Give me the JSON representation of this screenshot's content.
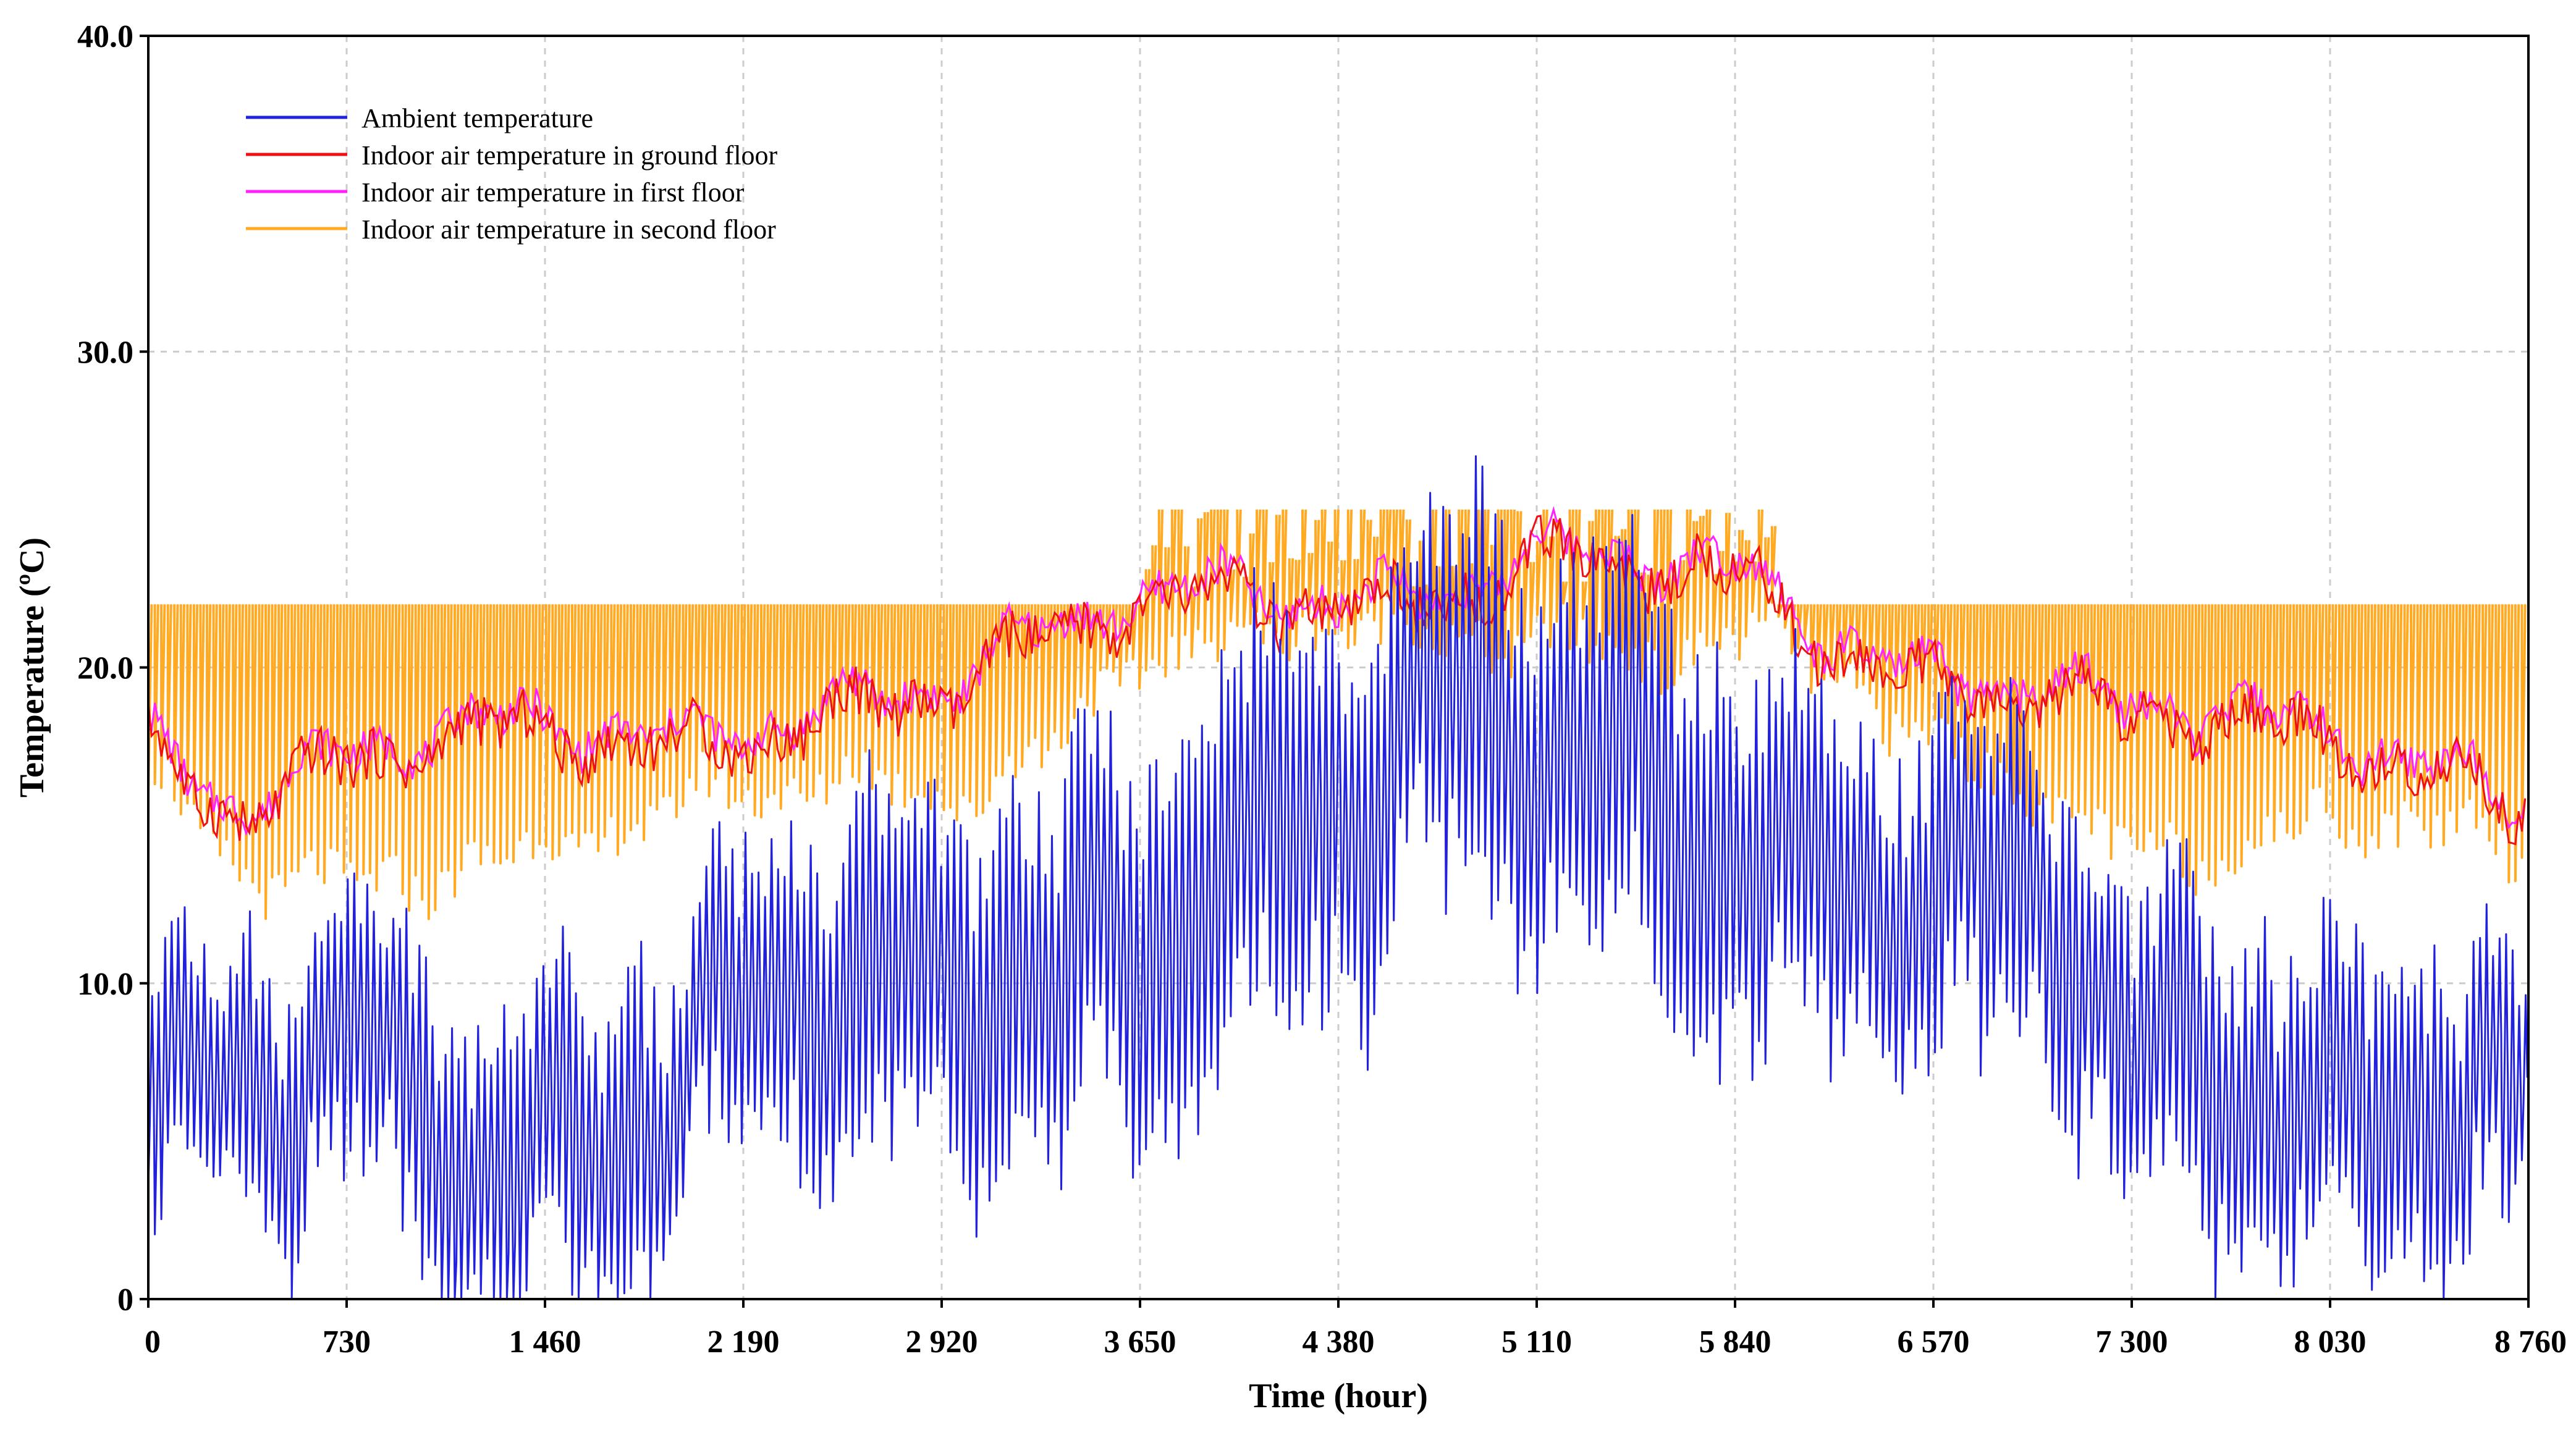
{
  "chart_data": {
    "type": "line",
    "title": "",
    "xlabel": "Time (hour)",
    "ylabel": "Temperature (ºC)",
    "xlim": [
      0,
      8760
    ],
    "ylim": [
      0,
      40
    ],
    "xticks": [
      0,
      730,
      1460,
      2190,
      2920,
      3650,
      4380,
      5110,
      5840,
      6570,
      7300,
      8030,
      8760
    ],
    "xtick_labels": [
      "0",
      "730",
      "1 460",
      "2 190",
      "2 920",
      "3 650",
      "4 380",
      "5 110",
      "5 840",
      "6 570",
      "7 300",
      "8 030",
      "8 760"
    ],
    "yticks": [
      0,
      10,
      20,
      30,
      40
    ],
    "ytick_labels": [
      "0",
      "10.0",
      "20.0",
      "30.0",
      "40.0"
    ],
    "grid": true,
    "legend_position": "top-left",
    "x": [
      0,
      365,
      730,
      1095,
      1460,
      1825,
      2190,
      2555,
      2920,
      3285,
      3650,
      4015,
      4380,
      4745,
      5110,
      5475,
      5840,
      6205,
      6570,
      6935,
      7300,
      7665,
      8030,
      8395,
      8760
    ],
    "series": [
      {
        "name": "Ambient temperature",
        "color": "#2222dd",
        "mean": [
          6,
          5,
          6.5,
          5,
          6,
          7.5,
          9,
          8,
          8.5,
          11,
          13,
          15,
          15,
          17,
          16.5,
          17,
          16,
          14,
          12,
          11,
          7,
          8,
          7.5,
          7,
          5
        ],
        "daily_amplitude": [
          3.5,
          3.5,
          4,
          4,
          4,
          4,
          4,
          4.5,
          4.5,
          5,
          5,
          5.5,
          5,
          5,
          5,
          5,
          5,
          4.5,
          4.5,
          4,
          4,
          4,
          4,
          4,
          3.5
        ]
      },
      {
        "name": "Indoor air temperature in ground floor",
        "color": "#ee1111",
        "mean": [
          18,
          16,
          17,
          17,
          17.5,
          17.5,
          18.5,
          19,
          19,
          20,
          21.5,
          22.5,
          22.5,
          22.5,
          23,
          22.5,
          22.5,
          21,
          20,
          19.5,
          18,
          17.5,
          17.5,
          17,
          16.5
        ],
        "min": [
          16,
          14,
          14,
          14.5,
          14.5,
          15,
          16,
          17,
          17,
          18,
          20.5,
          20.5,
          21.5,
          21.5,
          22,
          21,
          21,
          19.5,
          17.5,
          17,
          15,
          15,
          15,
          15,
          14
        ]
      },
      {
        "name": "Indoor air temperature in first floor",
        "color": "#ff22ff",
        "mean": [
          18.3,
          16.3,
          17.3,
          17.3,
          17.8,
          17.8,
          18.8,
          19.3,
          19.3,
          20.3,
          21.8,
          22.8,
          22.8,
          22.8,
          23.3,
          22.8,
          22.8,
          21.3,
          20.3,
          19.8,
          18.3,
          17.8,
          17.8,
          17.3,
          16.8
        ],
        "min": [
          16,
          14,
          14,
          14.5,
          14.5,
          15,
          16,
          17,
          17,
          18,
          20.5,
          20.5,
          21.5,
          21.5,
          22,
          21,
          21,
          19.5,
          17.5,
          17,
          15,
          15,
          15,
          15,
          14
        ]
      },
      {
        "name": "Indoor air temperature in second floor",
        "color": "#ffaa22",
        "max": 22,
        "max_summer": 25,
        "min": [
          16,
          14,
          14,
          14.5,
          14.5,
          15,
          16,
          17,
          17,
          18,
          20.5,
          20.5,
          21.5,
          21.5,
          22,
          21,
          21,
          19.5,
          17.5,
          17,
          15,
          15,
          15,
          15,
          14
        ]
      }
    ]
  }
}
